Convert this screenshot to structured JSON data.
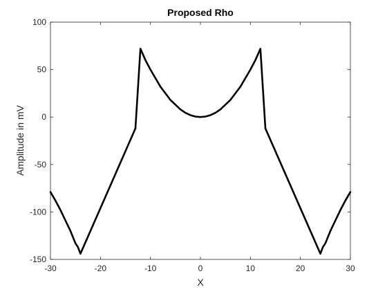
{
  "chart_data": {
    "type": "line",
    "title": "Proposed Rho",
    "xlabel": "X",
    "ylabel": "Amplitude in mV",
    "xlim": [
      -30,
      30
    ],
    "ylim": [
      -150,
      100
    ],
    "xticks": [
      -30,
      -20,
      -10,
      0,
      10,
      20,
      30
    ],
    "yticks": [
      -150,
      -100,
      -50,
      0,
      50,
      100
    ],
    "grid": false,
    "box": true,
    "series": [
      {
        "color": "#000000",
        "x": [
          -30,
          -29,
          -28,
          -27,
          -26,
          -25,
          -24.5,
          -24,
          -13,
          -12,
          -11,
          -10,
          -9,
          -8,
          -7,
          -6,
          -5,
          -4,
          -3,
          -2,
          -1,
          0,
          1,
          2,
          3,
          4,
          5,
          6,
          7,
          8,
          9,
          10,
          11,
          12,
          13,
          24,
          24.5,
          25,
          26,
          27,
          28,
          29,
          30
        ],
        "y": [
          -79,
          -88,
          -98,
          -109,
          -120,
          -133,
          -137,
          -144,
          -12,
          72,
          60,
          50,
          41,
          32,
          25,
          18,
          13,
          8,
          4.5,
          2,
          0.5,
          0,
          0.5,
          2,
          4.5,
          8,
          13,
          18,
          25,
          32,
          41,
          50,
          60,
          72,
          -12,
          -144,
          -137,
          -133,
          -120,
          -109,
          -98,
          -88,
          -79
        ]
      }
    ]
  }
}
